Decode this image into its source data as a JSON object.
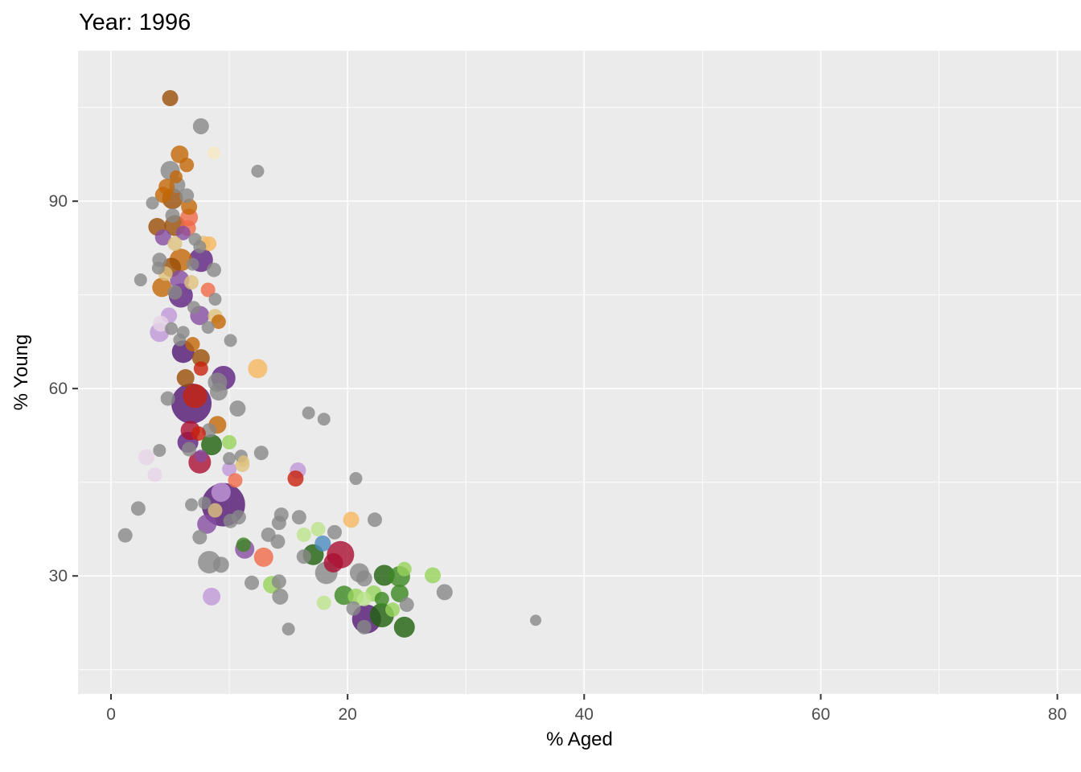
{
  "chart_data": {
    "type": "scatter",
    "title": "Year: 1996",
    "xlabel": "% Aged",
    "ylabel": "% Young",
    "x_ticks": [
      0,
      20,
      40,
      60,
      80
    ],
    "y_ticks": [
      30,
      60,
      90
    ],
    "x_minor": [
      10,
      30,
      50,
      70
    ],
    "y_minor": [
      15,
      45,
      75,
      105
    ],
    "xlim": [
      -2.79,
      82.0
    ],
    "ylim": [
      11.1,
      114.1
    ],
    "grid": true,
    "legend": "none",
    "panel_bg": "#EBEBEB",
    "grid_color": "#FFFFFF",
    "tick_color": "#333333",
    "tick_label_color": "#4D4D4D",
    "point_opacity": 0.8,
    "palette": {
      "G": "#888888",
      "BR": "#9A4E06",
      "OR": "#C36808",
      "PE": "#DFC27D",
      "PC": "#F6E8C3",
      "OL": "#F6B85F",
      "PD": "#511573",
      "PM": "#5E2080",
      "PV": "#864CA1",
      "LV": "#C197D8",
      "LP": "#E7D4E8",
      "GD": "#1E620D",
      "GM": "#3C8822",
      "GL": "#97D35B",
      "GP": "#BDE58D",
      "CR": "#AA0F32",
      "RD": "#C8220B",
      "SA": "#F06A47",
      "BL": "#4C8BBE"
    },
    "points": [
      [
        5.0,
        106.5,
        10,
        "BR"
      ],
      [
        7.6,
        102.0,
        10,
        "G"
      ],
      [
        8.7,
        97.7,
        8,
        "PC"
      ],
      [
        12.4,
        94.8,
        8,
        "G"
      ],
      [
        5.8,
        97.5,
        11,
        "OR"
      ],
      [
        6.4,
        95.8,
        9,
        "OR"
      ],
      [
        5.0,
        94.9,
        12,
        "G"
      ],
      [
        5.5,
        93.9,
        8,
        "OR"
      ],
      [
        5.6,
        92.6,
        10,
        "G"
      ],
      [
        4.7,
        92.3,
        10,
        "OR"
      ],
      [
        4.4,
        91.0,
        10,
        "OR"
      ],
      [
        5.2,
        90.4,
        13,
        "BR"
      ],
      [
        6.4,
        90.9,
        9,
        "G"
      ],
      [
        3.5,
        89.7,
        8,
        "G"
      ],
      [
        6.6,
        89.1,
        10,
        "OR"
      ],
      [
        5.2,
        87.7,
        9,
        "G"
      ],
      [
        6.6,
        87.4,
        11,
        "SA"
      ],
      [
        3.9,
        85.9,
        11,
        "BR"
      ],
      [
        5.4,
        86.1,
        13,
        "BR"
      ],
      [
        6.5,
        85.7,
        10,
        "SA"
      ],
      [
        4.4,
        84.2,
        10,
        "PV"
      ],
      [
        6.1,
        84.9,
        9,
        "PV"
      ],
      [
        7.1,
        83.9,
        8,
        "G"
      ],
      [
        5.4,
        83.2,
        9,
        "PE"
      ],
      [
        7.8,
        83.3,
        9,
        "PE"
      ],
      [
        7.5,
        82.7,
        8,
        "G"
      ],
      [
        8.3,
        83.2,
        9,
        "OL"
      ],
      [
        5.9,
        80.6,
        14,
        "OR"
      ],
      [
        5.1,
        79.4,
        12,
        "BR"
      ],
      [
        4.1,
        80.6,
        9,
        "G"
      ],
      [
        7.6,
        80.6,
        15,
        "PM"
      ],
      [
        6.9,
        79.9,
        8,
        "G"
      ],
      [
        8.7,
        79.0,
        9,
        "G"
      ],
      [
        4.6,
        78.4,
        9,
        "PE"
      ],
      [
        4.0,
        79.3,
        8,
        "G"
      ],
      [
        6.8,
        77.0,
        9,
        "PE"
      ],
      [
        5.8,
        77.4,
        12,
        "PV"
      ],
      [
        2.5,
        77.4,
        8,
        "G"
      ],
      [
        4.3,
        76.2,
        12,
        "OR"
      ],
      [
        8.2,
        75.8,
        9,
        "SA"
      ],
      [
        5.9,
        74.9,
        15,
        "PM"
      ],
      [
        5.4,
        75.4,
        9,
        "G"
      ],
      [
        8.8,
        74.3,
        8,
        "G"
      ],
      [
        7.0,
        73.0,
        8,
        "G"
      ],
      [
        7.5,
        71.7,
        12,
        "PV"
      ],
      [
        4.9,
        71.7,
        10,
        "LV"
      ],
      [
        4.2,
        70.4,
        10,
        "LP"
      ],
      [
        4.1,
        69.0,
        12,
        "LV"
      ],
      [
        5.1,
        69.6,
        8,
        "G"
      ],
      [
        6.1,
        69.0,
        8,
        "G"
      ],
      [
        5.8,
        67.8,
        8,
        "G"
      ],
      [
        8.8,
        71.6,
        9,
        "PE"
      ],
      [
        9.1,
        70.7,
        9,
        "OR"
      ],
      [
        8.2,
        69.8,
        8,
        "G"
      ],
      [
        10.1,
        67.7,
        8,
        "G"
      ],
      [
        6.1,
        65.9,
        14,
        "PD"
      ],
      [
        6.9,
        67.1,
        9,
        "OR"
      ],
      [
        7.6,
        64.9,
        11,
        "BR"
      ],
      [
        7.6,
        63.2,
        9,
        "RD"
      ],
      [
        6.3,
        61.7,
        11,
        "BR"
      ],
      [
        9.5,
        61.7,
        15,
        "PM"
      ],
      [
        9.0,
        61.0,
        12,
        "G"
      ],
      [
        9.1,
        59.5,
        11,
        "G"
      ],
      [
        12.4,
        63.2,
        12,
        "OL"
      ],
      [
        7.1,
        58.8,
        15,
        "RD"
      ],
      [
        6.8,
        57.6,
        25,
        "PD"
      ],
      [
        10.7,
        56.8,
        10,
        "G"
      ],
      [
        4.8,
        58.4,
        9,
        "G"
      ],
      [
        9.0,
        54.2,
        11,
        "OR"
      ],
      [
        8.3,
        53.3,
        9,
        "G"
      ],
      [
        6.7,
        53.3,
        12,
        "CR"
      ],
      [
        7.4,
        52.8,
        9,
        "RD"
      ],
      [
        6.5,
        51.4,
        13,
        "PM"
      ],
      [
        8.5,
        51.0,
        13,
        "GD"
      ],
      [
        10.0,
        51.4,
        9,
        "GL"
      ],
      [
        6.6,
        50.3,
        9,
        "G"
      ],
      [
        3.0,
        49.0,
        10,
        "LP"
      ],
      [
        4.1,
        50.1,
        8,
        "G"
      ],
      [
        7.5,
        48.2,
        14,
        "CR"
      ],
      [
        7.6,
        49.2,
        8,
        "PV"
      ],
      [
        10.0,
        48.8,
        8,
        "G"
      ],
      [
        12.7,
        49.7,
        9,
        "G"
      ],
      [
        10.0,
        47.1,
        9,
        "LV"
      ],
      [
        11.1,
        47.8,
        9,
        "PE"
      ],
      [
        11.0,
        49.2,
        8,
        "G"
      ],
      [
        3.7,
        46.2,
        9,
        "LP"
      ],
      [
        10.5,
        45.3,
        9,
        "SA"
      ],
      [
        16.7,
        56.1,
        8,
        "G"
      ],
      [
        18.0,
        55.1,
        8,
        "G"
      ],
      [
        11.2,
        48.4,
        7,
        "PE"
      ],
      [
        15.8,
        46.9,
        10,
        "LV"
      ],
      [
        15.6,
        45.6,
        10,
        "RD"
      ],
      [
        20.7,
        45.6,
        8,
        "G"
      ],
      [
        9.5,
        41.4,
        27,
        "PD"
      ],
      [
        9.3,
        43.4,
        12,
        "LV"
      ],
      [
        8.8,
        40.5,
        9,
        "PE"
      ],
      [
        8.1,
        38.3,
        12,
        "PV"
      ],
      [
        6.8,
        41.4,
        8,
        "G"
      ],
      [
        2.3,
        40.8,
        9,
        "G"
      ],
      [
        7.9,
        41.7,
        8,
        "G"
      ],
      [
        10.1,
        38.8,
        9,
        "G"
      ],
      [
        10.8,
        39.4,
        9,
        "G"
      ],
      [
        1.2,
        36.5,
        9,
        "G"
      ],
      [
        7.5,
        36.2,
        9,
        "G"
      ],
      [
        13.3,
        36.6,
        9,
        "G"
      ],
      [
        14.2,
        38.5,
        9,
        "G"
      ],
      [
        14.4,
        39.8,
        9,
        "G"
      ],
      [
        14.1,
        35.5,
        9,
        "G"
      ],
      [
        11.3,
        34.3,
        12,
        "PV"
      ],
      [
        12.9,
        33.0,
        12,
        "SA"
      ],
      [
        8.3,
        32.2,
        14,
        "G"
      ],
      [
        9.3,
        31.8,
        10,
        "G"
      ],
      [
        11.9,
        28.9,
        9,
        "G"
      ],
      [
        13.6,
        28.6,
        11,
        "GL"
      ],
      [
        14.2,
        29.1,
        9,
        "G"
      ],
      [
        14.3,
        26.7,
        10,
        "G"
      ],
      [
        8.5,
        26.7,
        11,
        "LV"
      ],
      [
        15.0,
        21.5,
        8,
        "G"
      ],
      [
        15.9,
        39.4,
        9,
        "G"
      ],
      [
        20.3,
        39.0,
        10,
        "OL"
      ],
      [
        22.3,
        39.0,
        9,
        "G"
      ],
      [
        16.3,
        36.6,
        9,
        "GP"
      ],
      [
        17.5,
        37.5,
        9,
        "GP"
      ],
      [
        18.9,
        37.0,
        9,
        "G"
      ],
      [
        17.9,
        35.2,
        10,
        "BL"
      ],
      [
        17.1,
        33.4,
        13,
        "GD"
      ],
      [
        16.3,
        33.1,
        9,
        "G"
      ],
      [
        11.2,
        35.0,
        9,
        "GM"
      ],
      [
        19.4,
        33.4,
        17,
        "CR"
      ],
      [
        18.8,
        32.1,
        12,
        "CR"
      ],
      [
        18.2,
        30.5,
        14,
        "G"
      ],
      [
        21.0,
        30.5,
        12,
        "G"
      ],
      [
        21.4,
        29.6,
        10,
        "G"
      ],
      [
        23.1,
        30.1,
        13,
        "GD"
      ],
      [
        24.4,
        29.9,
        13,
        "GM"
      ],
      [
        24.8,
        31.1,
        9,
        "GL"
      ],
      [
        27.2,
        30.1,
        10,
        "GL"
      ],
      [
        28.2,
        27.4,
        10,
        "G"
      ],
      [
        22.2,
        27.2,
        10,
        "GL"
      ],
      [
        21.4,
        26.3,
        9,
        "GP"
      ],
      [
        22.9,
        26.3,
        9,
        "GM"
      ],
      [
        24.4,
        27.2,
        11,
        "GM"
      ],
      [
        25.0,
        25.4,
        9,
        "G"
      ],
      [
        23.8,
        24.6,
        9,
        "GL"
      ],
      [
        22.9,
        23.7,
        15,
        "GD"
      ],
      [
        21.6,
        23.1,
        18,
        "PD"
      ],
      [
        24.8,
        21.8,
        13,
        "GD"
      ],
      [
        21.4,
        21.8,
        9,
        "G"
      ],
      [
        35.9,
        22.9,
        7,
        "G"
      ],
      [
        18.0,
        25.7,
        9,
        "GP"
      ],
      [
        20.5,
        24.8,
        9,
        "G"
      ],
      [
        19.7,
        26.9,
        12,
        "GM"
      ],
      [
        20.7,
        26.7,
        10,
        "GL"
      ]
    ]
  }
}
